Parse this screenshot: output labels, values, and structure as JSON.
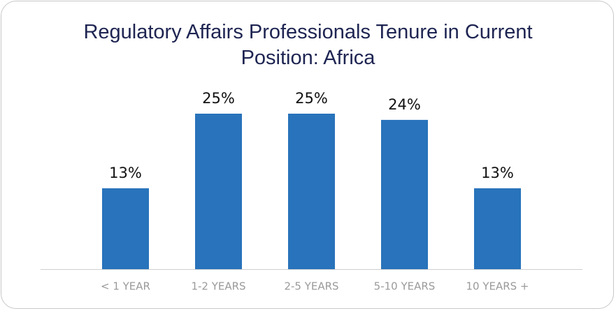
{
  "chart_data": {
    "type": "bar",
    "title": "Regulatory Affairs Professionals Tenure in Current Position: Africa",
    "categories": [
      "< 1 YEAR",
      "1-2 YEARS",
      "2-5 YEARS",
      "5-10 YEARS",
      "10 YEARS +"
    ],
    "values": [
      13,
      25,
      25,
      24,
      13
    ],
    "value_labels": [
      "13%",
      "25%",
      "25%",
      "24%",
      "13%"
    ],
    "color": "#2873bb"
  }
}
